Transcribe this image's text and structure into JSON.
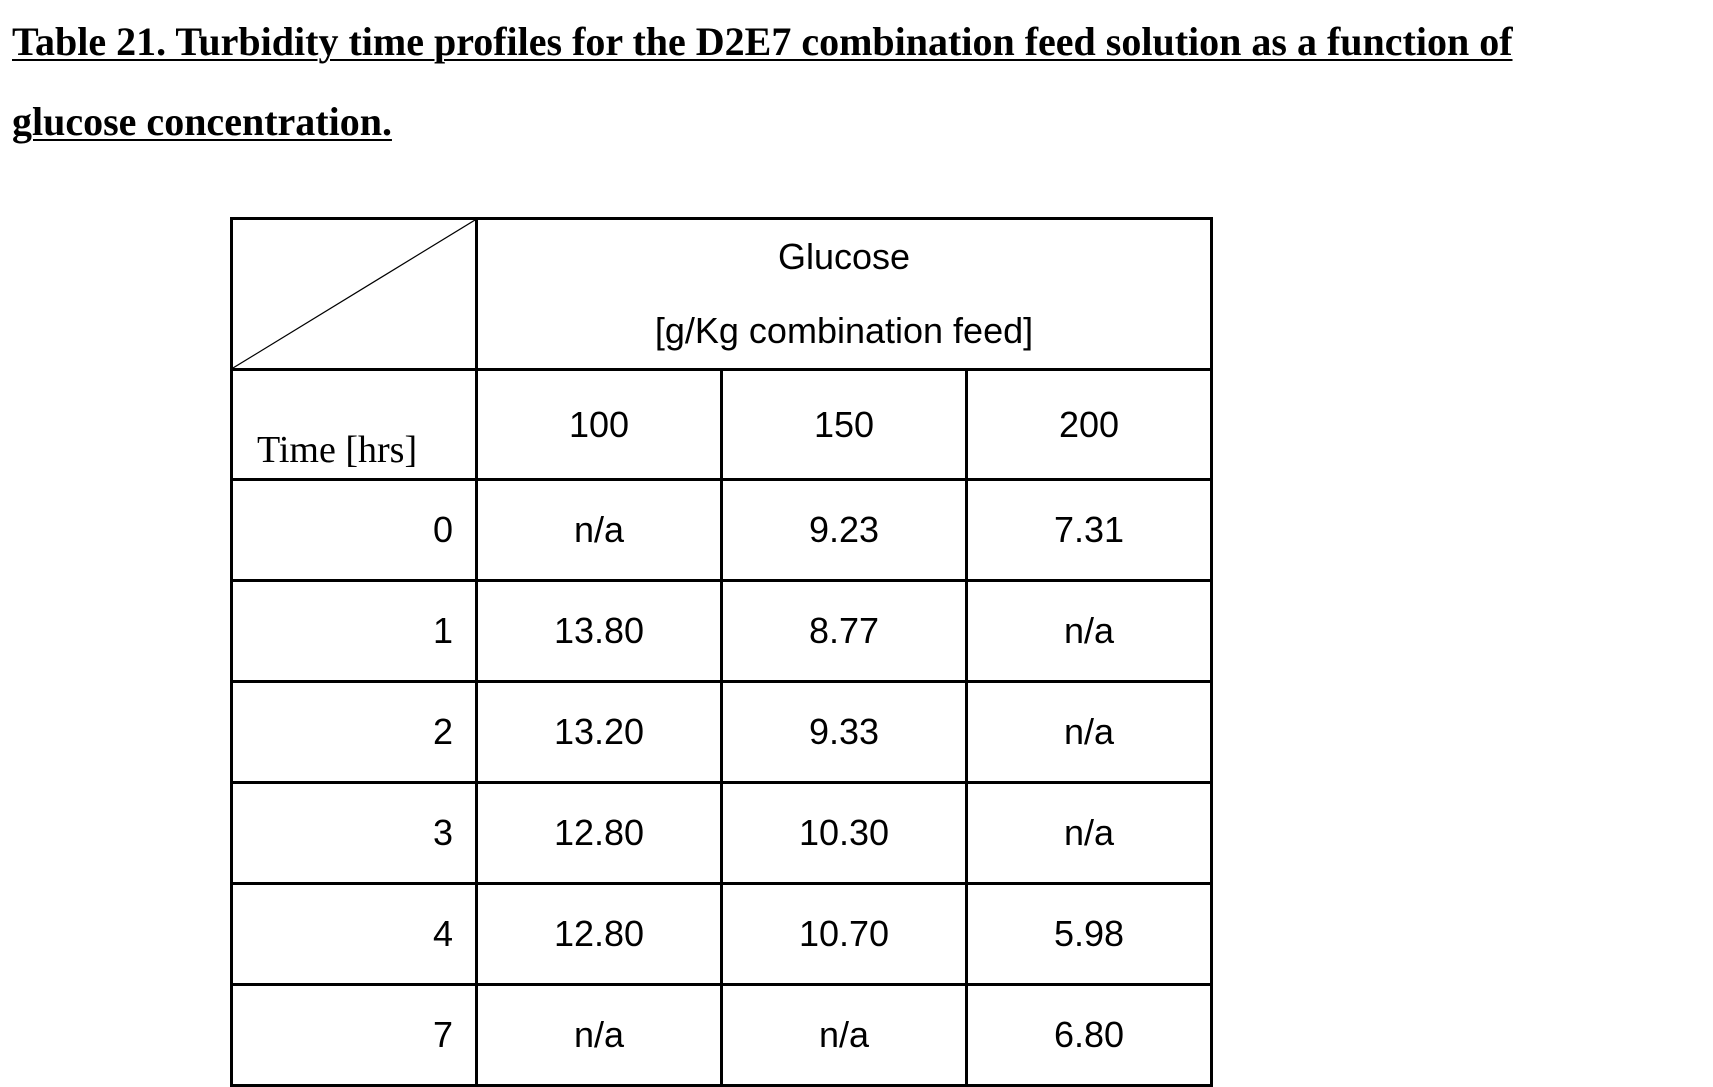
{
  "caption": {
    "line1": "Table 21.  Turbidity time profiles for the D2E7 combination feed solution as a function of",
    "line2": "glucose concentration."
  },
  "table": {
    "group_header": {
      "line1": "Glucose",
      "line2": "[g/Kg combination feed]"
    },
    "row_header_label": "Time [hrs]",
    "columns": [
      "100",
      "150",
      "200"
    ],
    "rows": [
      {
        "time": "0",
        "values": [
          "n/a",
          "9.23",
          "7.31"
        ]
      },
      {
        "time": "1",
        "values": [
          "13.80",
          "8.77",
          "n/a"
        ]
      },
      {
        "time": "2",
        "values": [
          "13.20",
          "9.33",
          "n/a"
        ]
      },
      {
        "time": "3",
        "values": [
          "12.80",
          "10.30",
          "n/a"
        ]
      },
      {
        "time": "4",
        "values": [
          "12.80",
          "10.70",
          "5.98"
        ]
      },
      {
        "time": "7",
        "values": [
          "n/a",
          "n/a",
          "6.80"
        ]
      }
    ]
  }
}
